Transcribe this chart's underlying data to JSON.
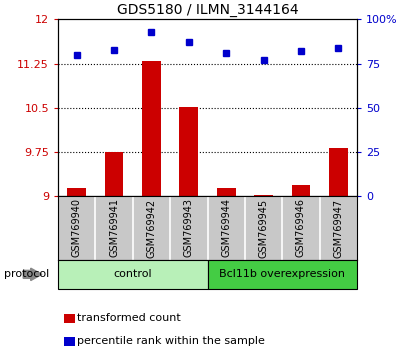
{
  "title": "GDS5180 / ILMN_3144164",
  "samples": [
    "GSM769940",
    "GSM769941",
    "GSM769942",
    "GSM769943",
    "GSM769944",
    "GSM769945",
    "GSM769946",
    "GSM769947"
  ],
  "transformed_count": [
    9.15,
    9.75,
    11.3,
    10.52,
    9.15,
    9.02,
    9.2,
    9.82
  ],
  "percentile_rank": [
    80,
    83,
    93,
    87,
    81,
    77,
    82,
    84
  ],
  "bar_color": "#CC0000",
  "dot_color": "#0000CC",
  "ylim_left": [
    9.0,
    12.0
  ],
  "ylim_right": [
    0,
    100
  ],
  "yticks_left": [
    9.0,
    9.75,
    10.5,
    11.25,
    12.0
  ],
  "ytick_labels_left": [
    "9",
    "9.75",
    "10.5",
    "11.25",
    "12"
  ],
  "yticks_right": [
    0,
    25,
    50,
    75,
    100
  ],
  "ytick_labels_right": [
    "0",
    "25",
    "50",
    "75",
    "100%"
  ],
  "hlines": [
    9.75,
    10.5,
    11.25
  ],
  "sample_bg_color": "#C8C8C8",
  "sample_divider_color": "#FFFFFF",
  "control_color": "#B8F0B8",
  "overexp_color": "#44CC44",
  "bar_width": 0.5,
  "n_control": 4,
  "n_overexp": 4,
  "legend_items": [
    {
      "label": "transformed count",
      "color": "#CC0000"
    },
    {
      "label": "percentile rank within the sample",
      "color": "#0000CC"
    }
  ],
  "protocol_label": "protocol",
  "group_label_control": "control",
  "group_label_overexp": "Bcl11b overexpression",
  "title_fontsize": 10,
  "axis_fontsize": 8,
  "sample_fontsize": 7,
  "legend_fontsize": 8
}
